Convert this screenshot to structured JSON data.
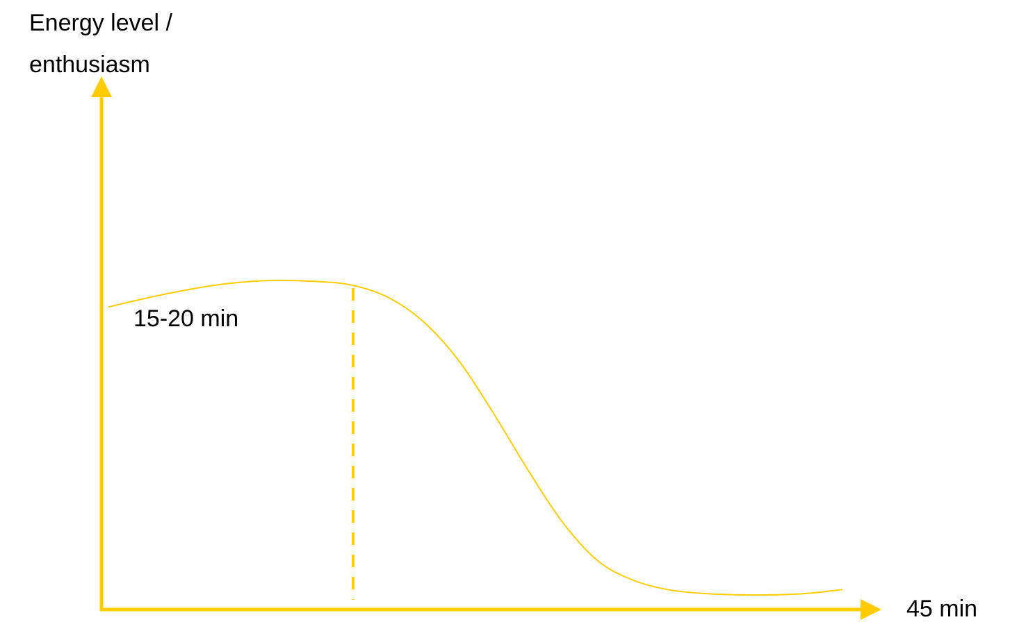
{
  "chart_data": {
    "type": "line",
    "ylabel_lines": [
      "Energy level /",
      "enthusiasm"
    ],
    "x_end_label": "45 min",
    "annotation": "15-20 min",
    "colors": {
      "axis": "#FFCC00",
      "curve": "#FFCC00",
      "text": "#000000"
    },
    "xlim": [
      0,
      45
    ],
    "ylim": [
      0,
      100
    ],
    "marker_x": 14,
    "series": [
      {
        "x": [
          0,
          3,
          6,
          9,
          12,
          14,
          16,
          18,
          20,
          22,
          24,
          26,
          28,
          30,
          32,
          34,
          36,
          38,
          40,
          42
        ],
        "values": [
          62,
          64.5,
          66.5,
          67.5,
          67.3,
          66.5,
          64,
          59,
          51,
          40,
          28,
          17,
          9,
          5,
          3,
          2.2,
          1.9,
          1.9,
          2.2,
          3
        ]
      }
    ]
  }
}
